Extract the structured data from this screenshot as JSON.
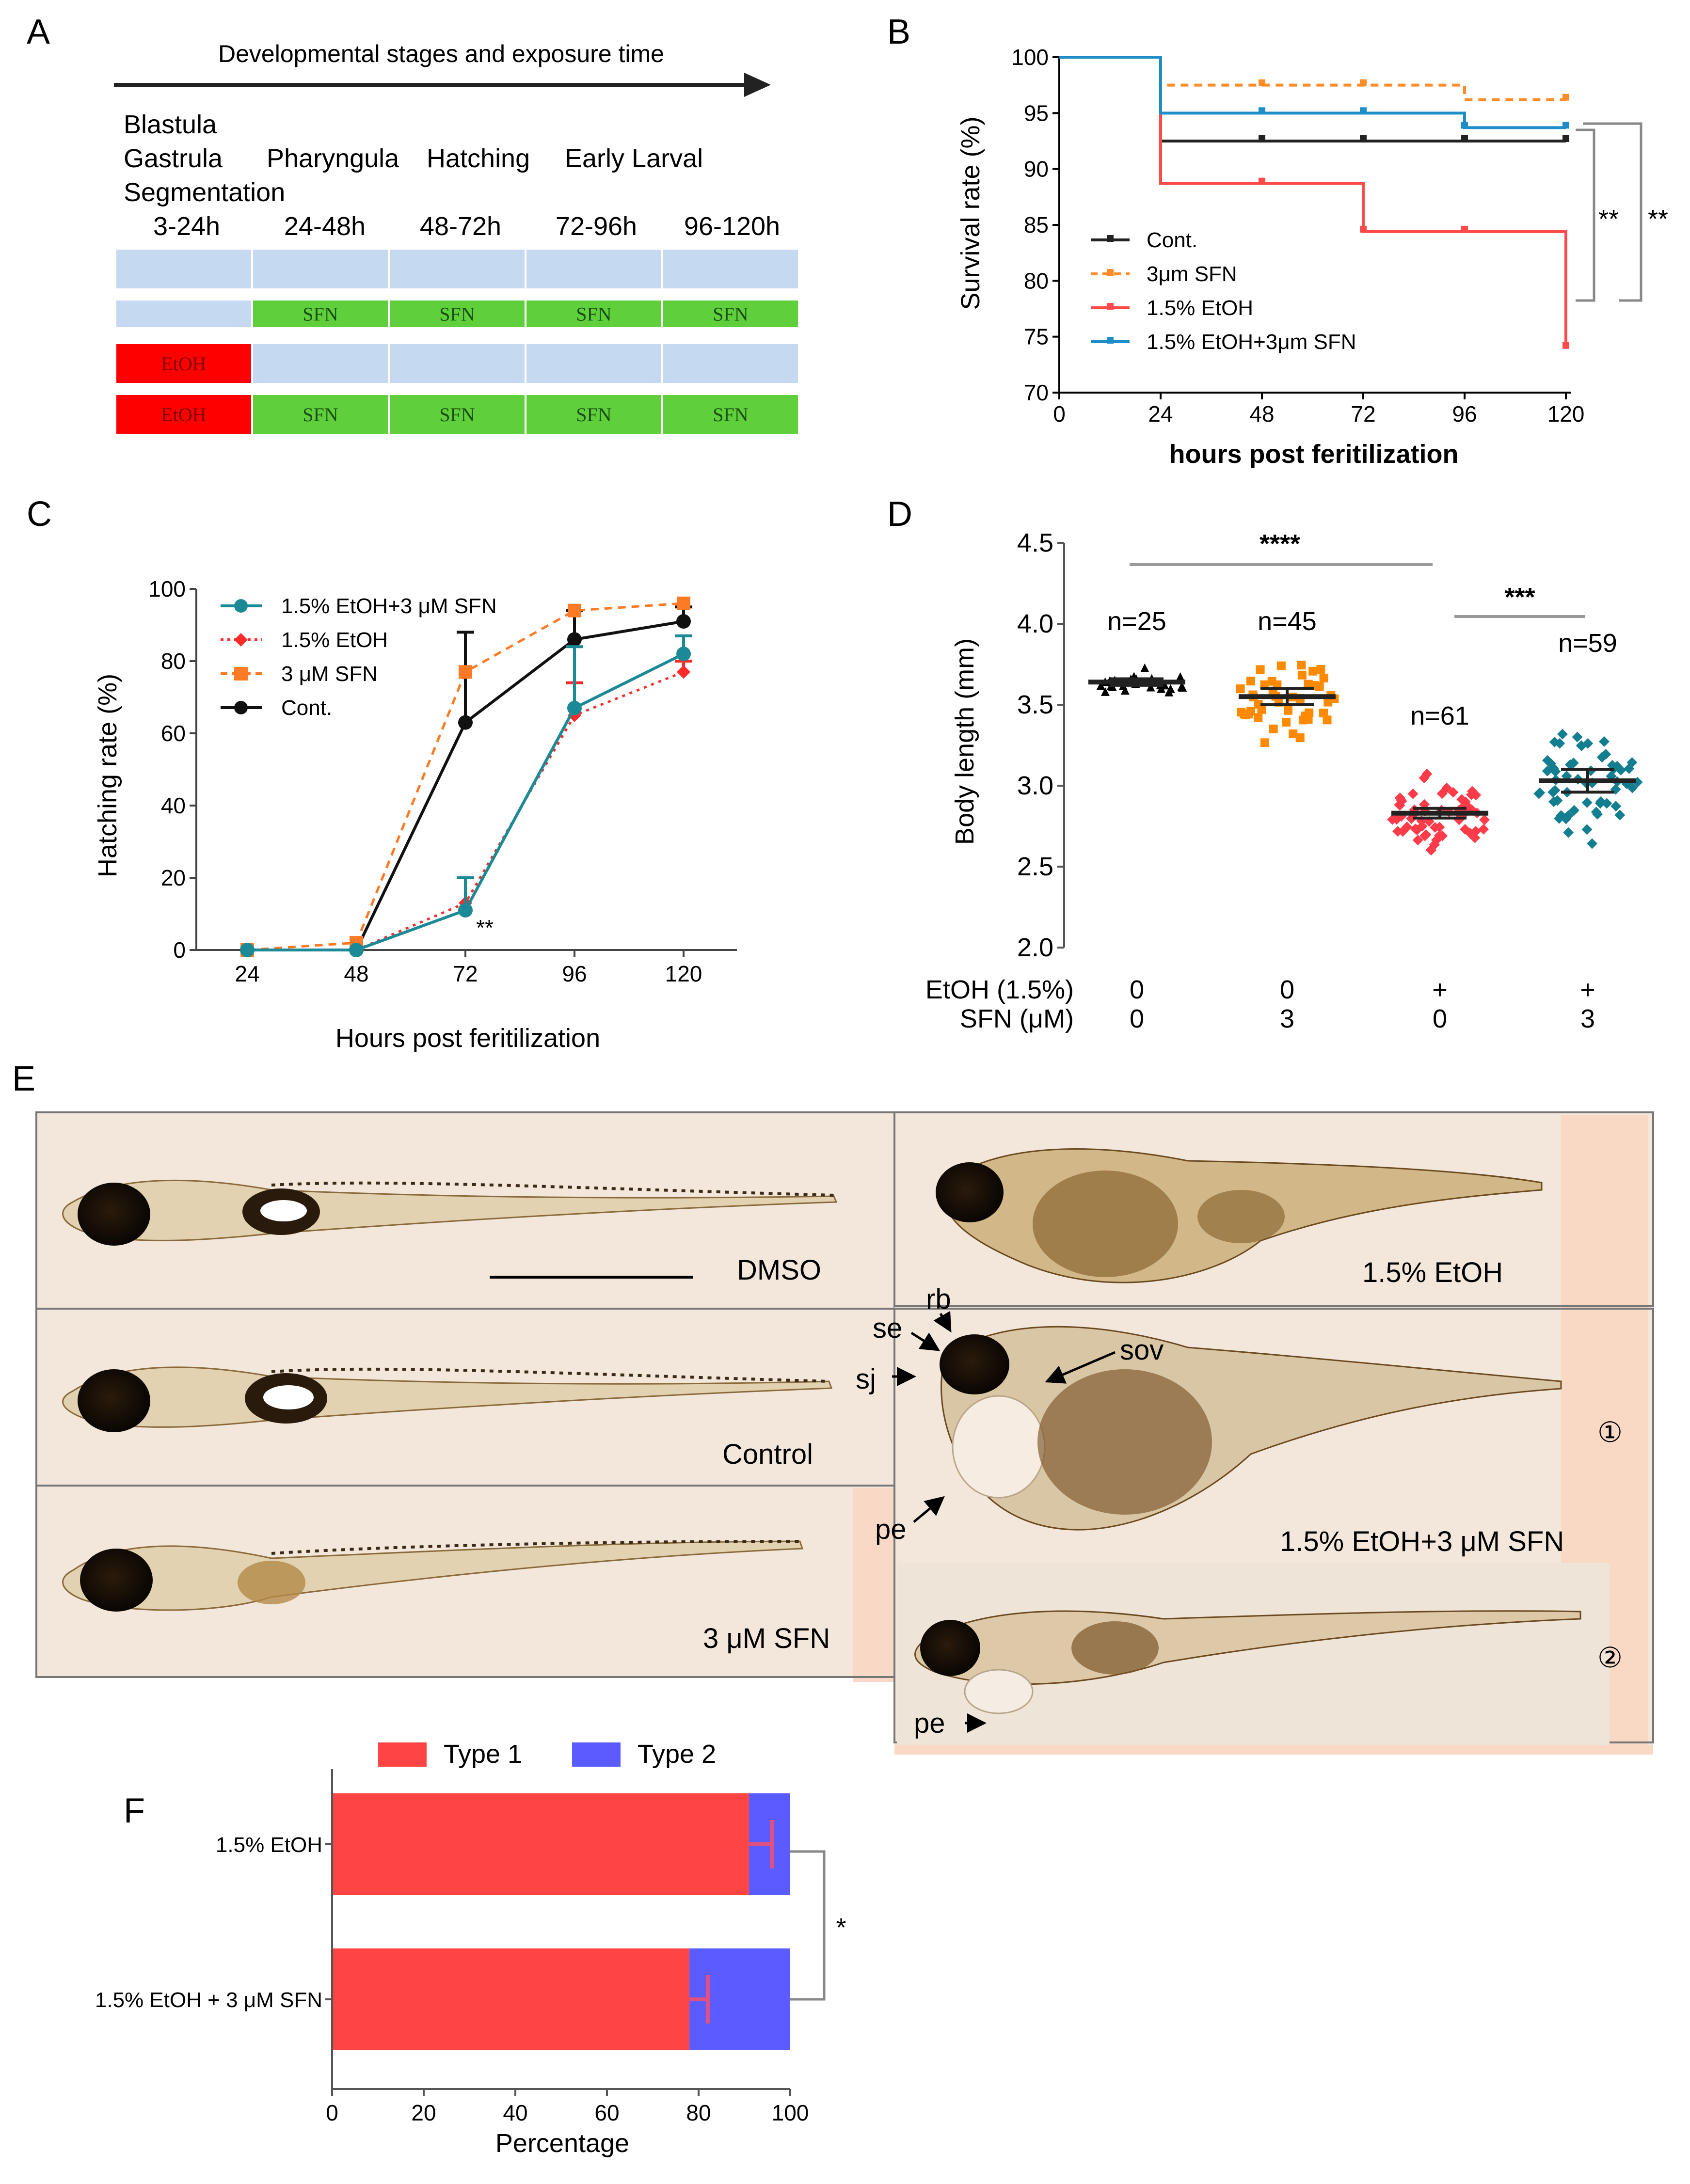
{
  "panels": {
    "A": "A",
    "B": "B",
    "C": "C",
    "D": "D",
    "E": "E",
    "F": "F"
  },
  "panel_a": {
    "arrow_title": "Developmental stages and exposure time",
    "stage_names": [
      "Blastula",
      "Gastrula",
      "Segmentation",
      "Pharyngula",
      "Hatching",
      "Early Larval"
    ],
    "time_windows": [
      "3-24h",
      "24-48h",
      "48-72h",
      "72-96h",
      "96-120h"
    ],
    "rows": [
      [
        "",
        "",
        "",
        "",
        ""
      ],
      [
        "",
        "SFN",
        "SFN",
        "SFN",
        "SFN"
      ],
      [
        "EtOH",
        "",
        "",
        "",
        ""
      ],
      [
        "EtOH",
        "SFN",
        "SFN",
        "SFN",
        "SFN"
      ]
    ],
    "colors": {
      "none": "#c5d9f0",
      "sfn": "#5fcf3c",
      "etoh": "#ff0000"
    }
  },
  "chart_data": [
    {
      "panel": "B",
      "type": "line",
      "subtype": "kaplan-meier step",
      "xlabel": "hours post feritilization",
      "ylabel": "Survival rate (%)",
      "xlim": [
        0,
        120
      ],
      "ylim": [
        70,
        100
      ],
      "xticks": [
        0,
        24,
        48,
        72,
        96,
        120
      ],
      "yticks": [
        70,
        75,
        80,
        85,
        90,
        95,
        100
      ],
      "legend_position": "bottom-left",
      "series": [
        {
          "name": "Cont.",
          "color": "#222222",
          "style": "solid",
          "steps": [
            [
              0,
              100
            ],
            [
              24,
              92.5
            ],
            [
              120,
              92.5
            ]
          ],
          "censor": [
            48,
            72,
            96,
            120
          ]
        },
        {
          "name": "3μm SFN",
          "color": "#ff8c28",
          "style": "dashed",
          "steps": [
            [
              0,
              100
            ],
            [
              24,
              97.5
            ],
            [
              96,
              96.2
            ],
            [
              120,
              96.2
            ]
          ],
          "censor": [
            48,
            72,
            120
          ]
        },
        {
          "name": "1.5% EtOH",
          "color": "#ff4a4a",
          "style": "solid",
          "steps": [
            [
              0,
              100
            ],
            [
              24,
              88.7
            ],
            [
              72,
              84.4
            ],
            [
              120,
              74
            ]
          ],
          "censor": [
            48,
            72,
            96,
            120
          ]
        },
        {
          "name": "1.5% EtOH+3μm SFN",
          "color": "#1f8ec8",
          "style": "solid",
          "steps": [
            [
              0,
              100
            ],
            [
              24,
              95
            ],
            [
              96,
              93.7
            ],
            [
              120,
              93.7
            ]
          ],
          "censor": [
            48,
            72,
            96,
            120
          ]
        }
      ],
      "annotations": [
        "**",
        "**"
      ]
    },
    {
      "panel": "C",
      "type": "line",
      "xlabel": "Hours post feritilization",
      "ylabel": "Hatching rate (%)",
      "categories": [
        "24",
        "48",
        "72",
        "96",
        "120"
      ],
      "ylim": [
        0,
        100
      ],
      "yticks": [
        0,
        20,
        40,
        60,
        80,
        100
      ],
      "legend_position": "top-left",
      "series": [
        {
          "name": "1.5% EtOH+3 μM SFN",
          "color": "#1b8a96",
          "style": "solid",
          "marker": "circle",
          "values": [
            0,
            0,
            11,
            67,
            82
          ],
          "errors": [
            0,
            0,
            9,
            17,
            5
          ]
        },
        {
          "name": "1.5% EtOH",
          "color": "#ff2b2b",
          "style": "dotted",
          "marker": "diamond",
          "values": [
            0,
            0,
            13,
            65,
            77
          ],
          "errors": [
            0,
            0,
            7,
            9,
            3
          ]
        },
        {
          "name": "3 μM SFN",
          "color": "#ff7a24",
          "style": "dashed",
          "marker": "square",
          "values": [
            0,
            2,
            77,
            94,
            96
          ],
          "errors": [
            0,
            0,
            0,
            0,
            0
          ]
        },
        {
          "name": "Cont.",
          "color": "#111111",
          "style": "solid",
          "marker": "circle",
          "values": [
            0,
            0,
            63,
            86,
            91
          ],
          "errors": [
            0,
            0,
            25,
            8,
            4
          ]
        }
      ],
      "annotations": [
        "**"
      ]
    },
    {
      "panel": "D",
      "type": "scatter",
      "subtype": "dot plot with mean ± SEM",
      "ylabel": "Body length (mm)",
      "ylim": [
        2.0,
        4.5
      ],
      "yticks": [
        "2.0",
        "2.5",
        "3.0",
        "3.5",
        "4.0",
        "4.5"
      ],
      "row_labels": [
        "EtOH (1.5%)",
        "SFN (μM)"
      ],
      "groups": [
        {
          "etoh": "0",
          "sfn": "0",
          "n_label": "n=25",
          "mean": 3.64,
          "sem": 0.02,
          "sd": 0.08,
          "color": "#000000"
        },
        {
          "etoh": "0",
          "sfn": "3",
          "n_label": "n=45",
          "mean": 3.55,
          "sem": 0.05,
          "sd": 0.22,
          "color": "#ff8a00"
        },
        {
          "etoh": "+",
          "sfn": "0",
          "n_label": "n=61",
          "mean": 2.83,
          "sem": 0.03,
          "sd": 0.19,
          "color": "#ff3b4a"
        },
        {
          "etoh": "+",
          "sfn": "3",
          "n_label": "n=59",
          "mean": 3.03,
          "sem": 0.07,
          "sd": 0.31,
          "color": "#127e90"
        }
      ],
      "annotations": [
        "****",
        "***"
      ]
    },
    {
      "panel": "F",
      "type": "bar",
      "subtype": "horizontal stacked percentage",
      "xlabel": "Percentage",
      "xlim": [
        0,
        100
      ],
      "xticks": [
        0,
        20,
        40,
        60,
        80,
        100
      ],
      "categories": [
        "1.5% EtOH",
        "1.5% EtOH + 3 μM SFN"
      ],
      "series": [
        {
          "name": "Type 1",
          "color": "#ff4444",
          "values": [
            91,
            78
          ]
        },
        {
          "name": "Type 2",
          "color": "#5a5cff",
          "values": [
            9,
            22
          ]
        }
      ],
      "errors": [
        5,
        4
      ],
      "legend_position": "top",
      "annotations": [
        "*"
      ]
    }
  ],
  "panel_e": {
    "labels": {
      "dmso": "DMSO",
      "etoh": "1.5% EtOH",
      "control": "Control",
      "sfn": "3 μM SFN",
      "combo": "1.5% EtOH+3 μM SFN",
      "type1": "①",
      "type2": "②"
    },
    "annotations": {
      "rb": "rb",
      "se": "se",
      "sj": "sj",
      "sov": "sov",
      "pe1": "pe",
      "pe2": "pe"
    }
  }
}
